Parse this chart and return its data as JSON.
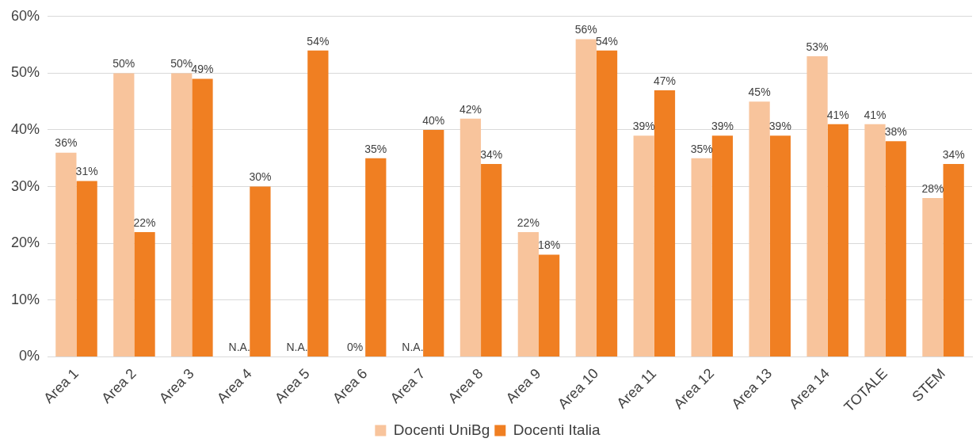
{
  "chart_data": {
    "type": "bar",
    "categories": [
      "Area 1",
      "Area 2",
      "Area 3",
      "Area 4",
      "Area 5",
      "Area 6",
      "Area 7",
      "Area 8",
      "Area 9",
      "Area 10",
      "Area 11",
      "Area 12",
      "Area 13",
      "Area 14",
      "TOTALE",
      "STEM"
    ],
    "series": [
      {
        "name": "Docenti UniBg",
        "color": "#f8c49c",
        "values": [
          36,
          50,
          50,
          null,
          null,
          0,
          null,
          42,
          22,
          56,
          39,
          35,
          45,
          53,
          41,
          28
        ],
        "value_labels": [
          "36%",
          "50%",
          "50%",
          "N.A.",
          "N.A.",
          "0%",
          "N.A.",
          "42%",
          "22%",
          "56%",
          "39%",
          "35%",
          "45%",
          "53%",
          "41%",
          "28%"
        ]
      },
      {
        "name": "Docenti Italia",
        "color": "#f07f22",
        "values": [
          31,
          22,
          49,
          30,
          54,
          35,
          40,
          34,
          18,
          54,
          47,
          39,
          39,
          41,
          38,
          34
        ],
        "value_labels": [
          "31%",
          "22%",
          "49%",
          "30%",
          "54%",
          "35%",
          "40%",
          "34%",
          "18%",
          "54%",
          "47%",
          "39%",
          "39%",
          "41%",
          "38%",
          "34%"
        ]
      }
    ],
    "ylim": [
      0,
      60
    ],
    "yticks": [
      {
        "value": 0,
        "label": "0%"
      },
      {
        "value": 10,
        "label": "10%"
      },
      {
        "value": 20,
        "label": "20%"
      },
      {
        "value": 30,
        "label": "30%"
      },
      {
        "value": 40,
        "label": "40%"
      },
      {
        "value": 50,
        "label": "50%"
      },
      {
        "value": 60,
        "label": "60%"
      }
    ],
    "grid": "y",
    "legend": "bottom"
  }
}
